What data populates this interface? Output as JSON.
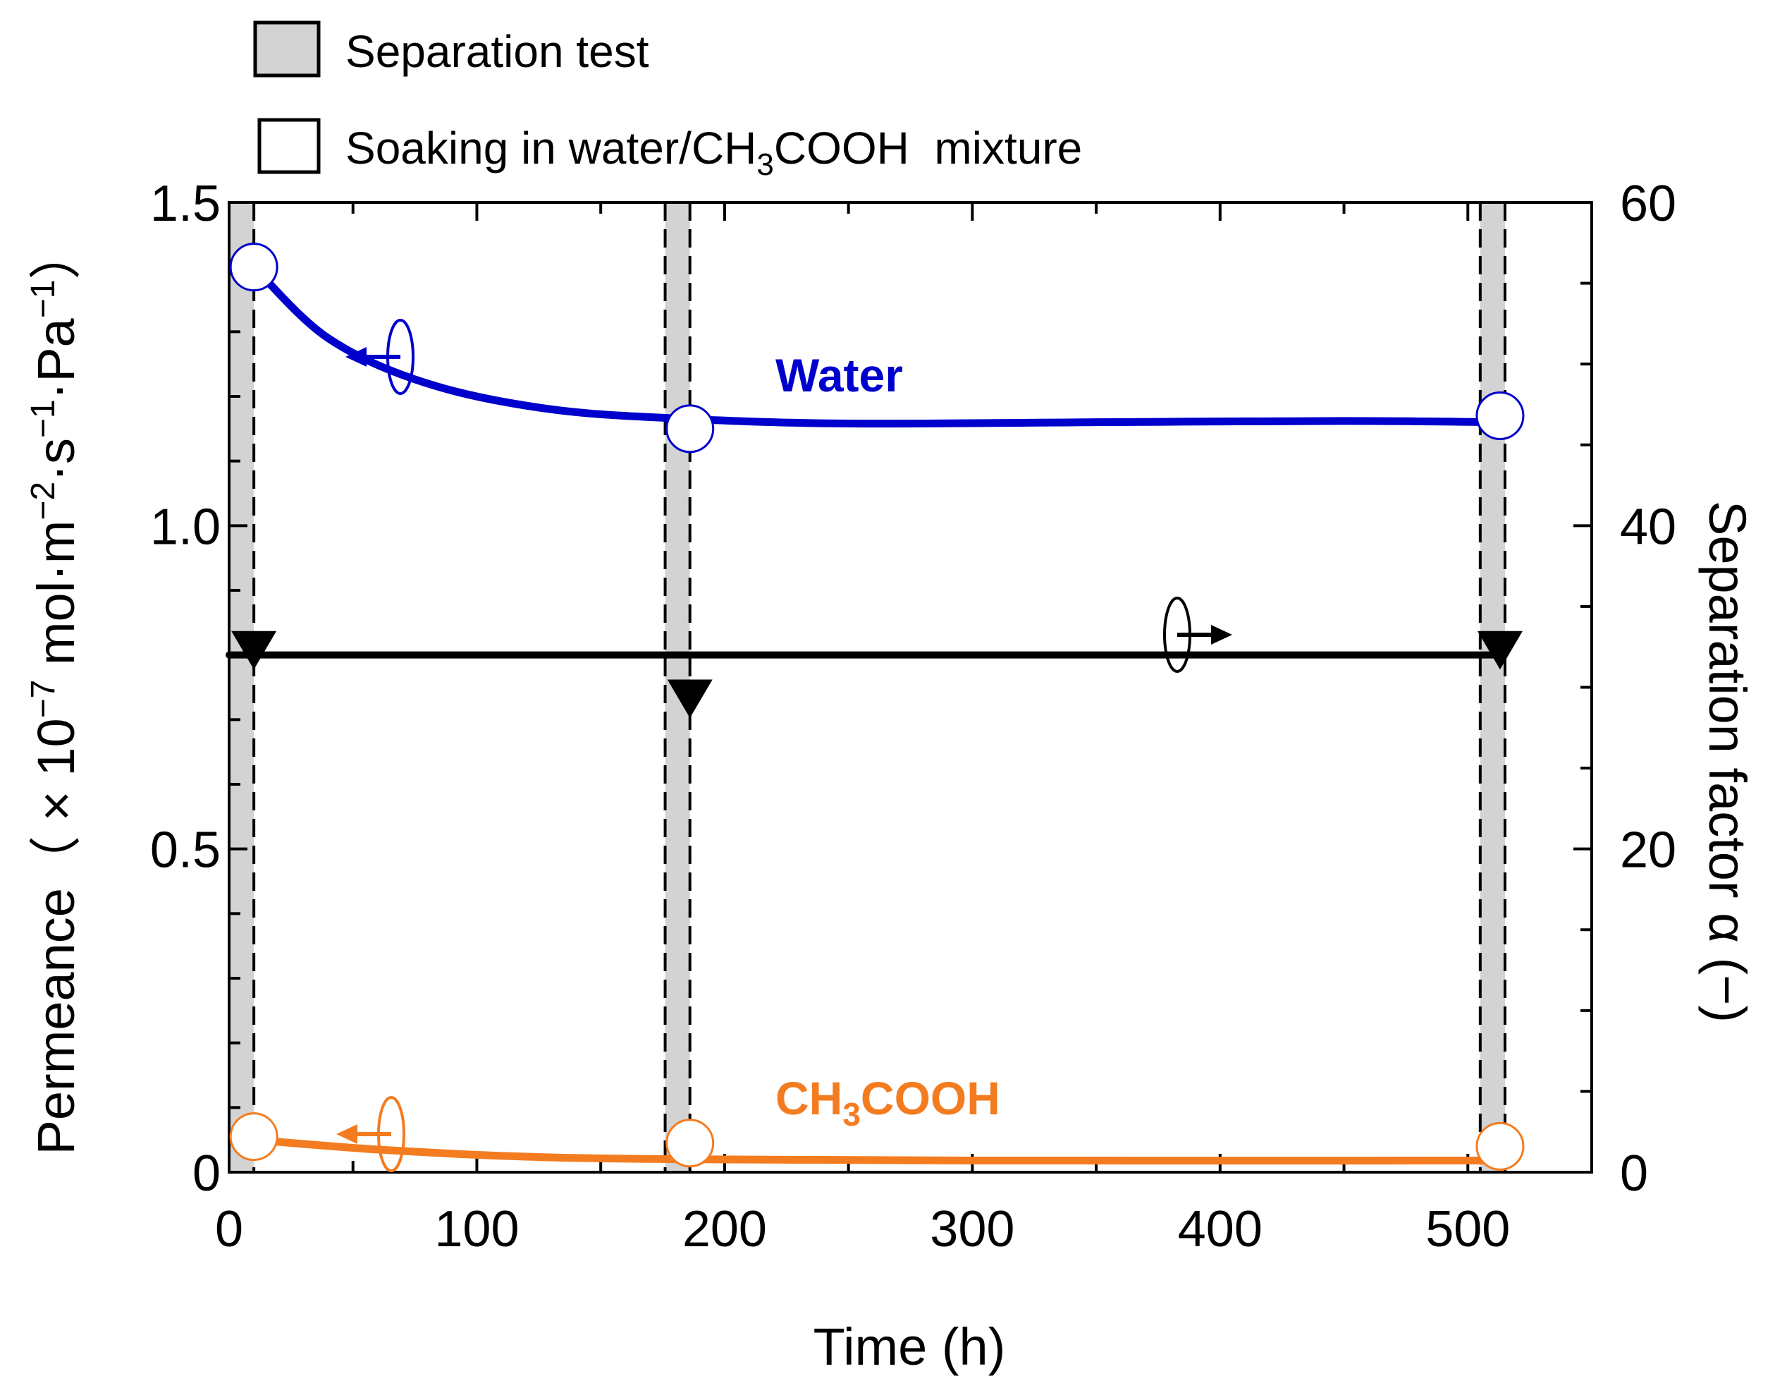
{
  "chart_data": {
    "type": "line",
    "xlabel": "Time (h)",
    "ylabel_left_prefix": "Permeance（ × 10",
    "ylabel_left_exp": "−7",
    "ylabel_left_unit": " mol·m",
    "ylabel_left_unit_exp1": "−2",
    "ylabel_left_unit_mid1": "·s",
    "ylabel_left_unit_exp2": "−1",
    "ylabel_left_unit_mid2": "·Pa",
    "ylabel_left_unit_exp3": "−1",
    "ylabel_left_suffix": "）",
    "ylabel_right": "Separation factor α (−)",
    "xlim": [
      0,
      550
    ],
    "ylim_left": [
      0,
      1.5
    ],
    "ylim_right": [
      0,
      60
    ],
    "x_ticks": [
      0,
      100,
      200,
      300,
      400,
      500
    ],
    "x_tick_labels": [
      "0",
      "100",
      "200",
      "300",
      "400",
      "500"
    ],
    "y_left_ticks": [
      0,
      0.5,
      1.0,
      1.5
    ],
    "y_left_tick_labels": [
      "0",
      "0.5",
      "1.0",
      "1.5"
    ],
    "y_right_ticks": [
      0,
      20,
      40,
      60
    ],
    "y_right_tick_labels": [
      "0",
      "20",
      "40",
      "60"
    ],
    "legend": [
      {
        "label": "Separation test",
        "style": "gray-filled-box"
      },
      {
        "label_prefix": "Soaking in water/CH",
        "label_sub": "3",
        "label_suffix": "COOH  mixture",
        "style": "white-box"
      }
    ],
    "separation_test_bands": [
      [
        0,
        10
      ],
      [
        176,
        186
      ],
      [
        505,
        515
      ]
    ],
    "series": [
      {
        "name": "Water",
        "axis": "left",
        "color": "#0000cc",
        "points": [
          [
            10,
            1.4
          ],
          [
            186,
            1.15
          ],
          [
            513,
            1.17
          ]
        ],
        "trend": [
          [
            10,
            1.4
          ],
          [
            40,
            1.29
          ],
          [
            80,
            1.22
          ],
          [
            130,
            1.18
          ],
          [
            186,
            1.165
          ],
          [
            250,
            1.158
          ],
          [
            350,
            1.16
          ],
          [
            450,
            1.162
          ],
          [
            513,
            1.16
          ]
        ]
      },
      {
        "name_prefix": "CH",
        "name_sub": "3",
        "name_suffix": "COOH",
        "axis": "left",
        "color": "#f47c20",
        "points": [
          [
            10,
            0.055
          ],
          [
            186,
            0.045
          ],
          [
            513,
            0.04
          ]
        ],
        "trend": [
          [
            10,
            0.05
          ],
          [
            60,
            0.035
          ],
          [
            120,
            0.024
          ],
          [
            186,
            0.02
          ],
          [
            300,
            0.018
          ],
          [
            513,
            0.018
          ]
        ]
      },
      {
        "name": "Separation factor",
        "axis": "right",
        "color": "#000000",
        "marker": "triangle-down",
        "points": [
          [
            10,
            32.5
          ],
          [
            186,
            29.5
          ],
          [
            513,
            32.5
          ]
        ],
        "trend": [
          [
            0,
            32
          ],
          [
            513,
            32
          ]
        ]
      }
    ]
  }
}
